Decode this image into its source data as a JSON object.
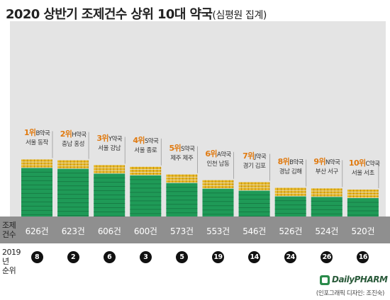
{
  "title": "2020 상반기 조제건수 상위 10대 약국",
  "subtitle": "(심평원 집계)",
  "row_labels": {
    "count_line1": "조제",
    "count_line2": "건수",
    "rank_line1": "2019년",
    "rank_line2": "순위"
  },
  "colors": {
    "bar": "#1f9a57",
    "bar_dark": "#177c45",
    "coin": "#e8b824",
    "plot_bg": "#e4e4e4",
    "band": "#8f8f8f",
    "rank_text": "#e07a10"
  },
  "chart_data": {
    "type": "bar",
    "title": "2020 상반기 조제건수 상위 10대 약국",
    "subtitle": "(심평원 집계)",
    "categories": [
      "1위",
      "2위",
      "3위",
      "4위",
      "5위",
      "6위",
      "7위",
      "8위",
      "9위",
      "10위"
    ],
    "pharmacies": [
      "B약국",
      "H약국",
      "Y약국",
      "S약국",
      "S약국",
      "A약국",
      "J약국",
      "B약국",
      "N약국",
      "C약국"
    ],
    "regions": [
      "서울 동작",
      "충남 홍성",
      "서울 강남",
      "서울 종로",
      "제주 제주",
      "인천 남동",
      "경기 김포",
      "경남 김해",
      "부산 서구",
      "서울 서초"
    ],
    "values": [
      626,
      623,
      606,
      600,
      573,
      553,
      546,
      526,
      524,
      520
    ],
    "value_labels": [
      "626건",
      "623건",
      "606건",
      "600건",
      "573건",
      "553건",
      "546건",
      "526건",
      "524건",
      "520건"
    ],
    "rank_2019": [
      8,
      2,
      6,
      3,
      5,
      19,
      14,
      24,
      26,
      16
    ],
    "ylim": [
      0,
      640
    ],
    "grid": false
  },
  "logo_text": "DailyPHARM",
  "credit": "(인포그래픽 디자인: 조진숙)"
}
